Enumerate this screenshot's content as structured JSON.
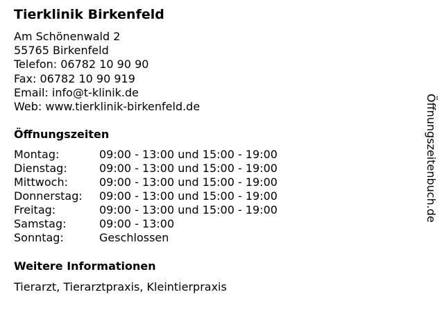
{
  "title": "Tierklinik Birkenfeld",
  "address": [
    "Am Schönenwald 2",
    "55765 Birkenfeld",
    "Telefon: 06782 10 90 90",
    "Fax: 06782 10 90 919",
    "Email: info@t-klinik.de",
    "Web: www.tierklinik-birkenfeld.de"
  ],
  "hours_heading": "Öffnungszeiten",
  "hours": [
    {
      "day": "Montag:",
      "time": "09:00 - 13:00 und 15:00 - 19:00"
    },
    {
      "day": "Dienstag:",
      "time": "09:00 - 13:00 und 15:00 - 19:00"
    },
    {
      "day": "Mittwoch:",
      "time": "09:00 - 13:00 und 15:00 - 19:00"
    },
    {
      "day": "Donnerstag:",
      "time": "09:00 - 13:00 und 15:00 - 19:00"
    },
    {
      "day": "Freitag:",
      "time": "09:00 - 13:00 und 15:00 - 19:00"
    },
    {
      "day": "Samstag:",
      "time": "09:00 - 13:00"
    },
    {
      "day": "Sonntag:",
      "time": "Geschlossen"
    }
  ],
  "info_heading": "Weitere Informationen",
  "info": "Tierarzt, Tierarztpraxis, Kleintierpraxis",
  "watermark": "Öffnungszeitenbuch.de"
}
